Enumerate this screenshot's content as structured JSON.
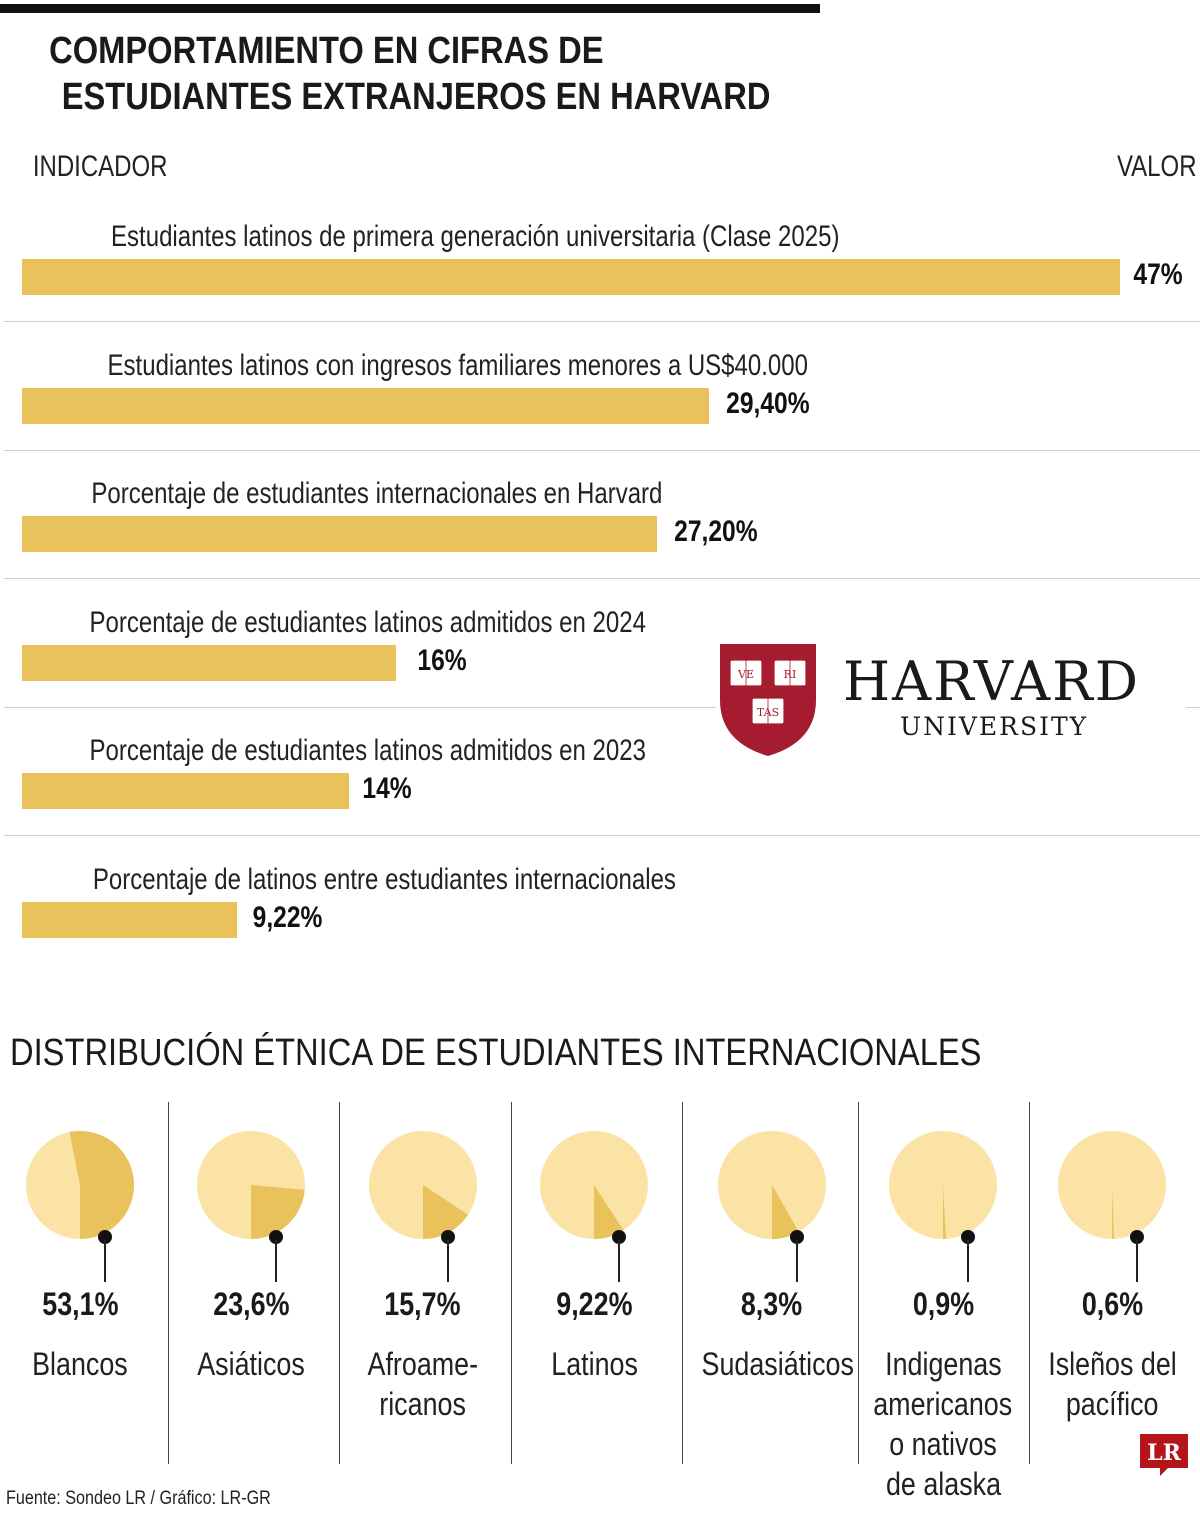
{
  "title": [
    "COMPORTAMIENTO EN CIFRAS DE",
    "ESTUDIANTES EXTRANJEROS EN HARVARD"
  ],
  "columns": {
    "indicator": "INDICADOR",
    "value": "VALOR"
  },
  "colors": {
    "bar": "#e9c25c",
    "pie_base": "#fbe3a6",
    "pie_slice": "#e9c25c",
    "crimson": "#a51c30"
  },
  "logo": {
    "icon": "harvard-shield-icon",
    "name": "HARVARD",
    "subtitle": "UNIVERSITY",
    "shield_words": [
      "VE",
      "RI",
      "TAS"
    ]
  },
  "chart_data": [
    {
      "type": "bar",
      "orientation": "horizontal",
      "categories": [
        "Estudiantes latinos de primera generación universitaria (Clase 2025)",
        "Estudiantes latinos con ingresos familiares menores a US$40.000",
        "Porcentaje de estudiantes internacionales en Harvard",
        "Porcentaje de estudiantes latinos admitidos en 2024",
        "Porcentaje de estudiantes latinos admitidos en 2023",
        "Porcentaje de latinos entre estudiantes internacionales"
      ],
      "values": [
        47,
        29.4,
        27.2,
        16,
        14,
        9.22
      ],
      "value_labels": [
        "47%",
        "29,40%",
        "27,20%",
        "16%",
        "14%",
        "9,22%"
      ],
      "xlim": [
        0,
        47
      ]
    },
    {
      "type": "pie",
      "title": "DISTRIBUCIÓN ÉTNICA DE ESTUDIANTES INTERNACIONALES",
      "items": [
        {
          "label": [
            "Blancos"
          ],
          "value": 53.1,
          "value_label": "53,1%"
        },
        {
          "label": [
            "Asiáticos"
          ],
          "value": 23.6,
          "value_label": "23,6%"
        },
        {
          "label": [
            "Afroame-",
            "ricanos"
          ],
          "value": 15.7,
          "value_label": "15,7%"
        },
        {
          "label": [
            "Latinos"
          ],
          "value": 9.22,
          "value_label": "9,22%"
        },
        {
          "label": [
            "Sudasiáticos"
          ],
          "value": 8.3,
          "value_label": "8,3%"
        },
        {
          "label": [
            "Indigenas",
            "americanos",
            "o nativos",
            "de alaska"
          ],
          "value": 0.9,
          "value_label": "0,9%"
        },
        {
          "label": [
            "Isleños del",
            "pacífico"
          ],
          "value": 0.6,
          "value_label": "0,6%"
        }
      ]
    }
  ],
  "source": "Fuente: Sondeo LR / Gráfico: LR-GR",
  "brand": {
    "icon": "lr-logo-icon",
    "text": "LR"
  }
}
